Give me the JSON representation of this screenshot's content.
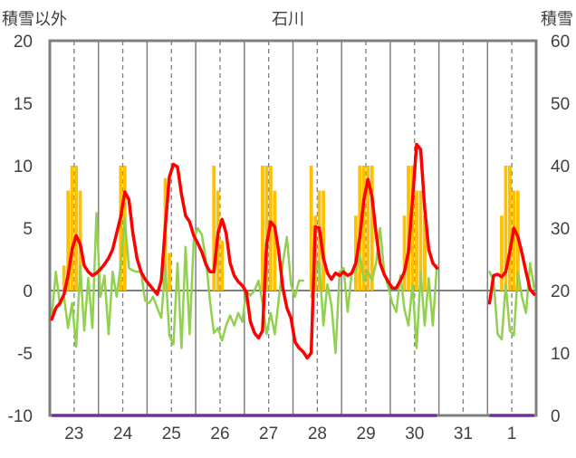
{
  "chart_data": {
    "type": "line",
    "title": "石川",
    "categories": [
      "23",
      "24",
      "25",
      "26",
      "27",
      "28",
      "29",
      "30",
      "31",
      "1"
    ],
    "y_left": {
      "label": "積雪以外",
      "range": [
        -10,
        20
      ],
      "ticks": [
        20,
        15,
        10,
        5,
        0,
        -5,
        -10
      ],
      "bar_series": [
        {
          "color": "#ffc000",
          "values": [
            [
              0,
              0,
              0,
              2,
              8,
              10,
              10,
              8,
              0,
              0,
              0,
              0
            ],
            [
              0,
              0,
              0,
              0,
              0,
              10,
              10,
              0,
              0,
              0,
              0,
              0
            ],
            [
              0,
              0,
              0,
              0,
              9,
              3,
              0,
              0,
              0,
              0,
              0,
              0
            ],
            [
              0,
              0,
              0,
              0,
              10,
              8,
              4,
              0,
              0,
              0,
              0,
              0
            ],
            [
              0,
              0,
              0,
              0,
              10,
              10,
              10,
              8,
              0,
              0,
              0,
              0
            ],
            [
              0,
              0,
              0,
              0,
              10,
              6,
              8,
              8,
              0,
              0,
              0,
              0
            ],
            [
              0,
              0,
              0,
              6,
              10,
              10,
              10,
              10,
              0,
              0,
              0,
              0
            ],
            [
              0,
              0,
              0,
              6,
              10,
              10,
              8,
              8,
              6,
              0,
              0,
              0
            ],
            null,
            [
              0,
              0,
              0,
              6,
              10,
              10,
              8,
              8,
              0,
              0,
              0,
              0
            ]
          ]
        }
      ],
      "line_series": [
        {
          "color": "#92d050",
          "values": [
            [
              -2.0,
              1.5,
              -1.2,
              -0.5,
              -3.0,
              -1.0,
              -4.5,
              2.0,
              -3.2,
              1.0,
              -3.0,
              6.2
            ],
            [
              -0.5,
              1.2,
              -3.5,
              1.5,
              -0.5,
              2.0,
              5.8,
              1.8,
              1.6,
              1.5,
              1.5,
              -0.8
            ],
            [
              -1.0,
              -0.5,
              -1.4,
              -2.2,
              2.0,
              -3.6,
              -4.3,
              2.2,
              -4.6,
              3.5,
              -3.5,
              4.0
            ],
            [
              5.0,
              4.5,
              2.5,
              -0.8,
              -3.4,
              -3.0,
              -4.0,
              -2.8,
              -2.0,
              -2.8,
              -1.8,
              -2.5
            ],
            [
              0.0,
              -0.4,
              0.0,
              0.8,
              -1.0,
              -3.5,
              -1.8,
              -3.5,
              -0.7,
              2.2,
              4.3,
              0.5
            ],
            [
              -0.5,
              0.8,
              0.8,
              null,
              -0.5,
              1.5,
              2.2,
              -2.8,
              0.5,
              -1.2,
              -5.0,
              1.5
            ],
            [
              1.8,
              -1.7,
              1.5,
              1.5,
              3.0,
              0.8,
              1.5,
              0.8,
              2.2,
              5.0,
              1.5,
              0.3
            ],
            [
              -1.0,
              -1.7,
              1.2,
              -1.5,
              -2.8,
              0.5,
              -4.6,
              1.5,
              -2.8,
              1.0,
              -2.8,
              2.0
            ],
            null,
            [
              1.5,
              0.8,
              -3.5,
              -3.9,
              0.5,
              -3.2,
              -3.6,
              1.5,
              -0.5,
              -1.8,
              2.2,
              0.2
            ]
          ]
        },
        {
          "color": "#ff0000",
          "values": [
            [
              -2.3,
              -1.4,
              -1.0,
              -0.3,
              1.2,
              3.3,
              4.4,
              3.7,
              2.0,
              1.5,
              1.2,
              1.4
            ],
            [
              1.7,
              2.1,
              2.6,
              3.3,
              4.6,
              5.9,
              7.9,
              7.3,
              4.6,
              2.6,
              1.5,
              0.9
            ],
            [
              0.5,
              0.1,
              -0.3,
              0.8,
              5.1,
              9.1,
              10.1,
              9.9,
              7.7,
              6.0,
              5.5,
              4.4
            ],
            [
              3.8,
              3.1,
              2.1,
              1.5,
              1.5,
              4.6,
              5.7,
              4.6,
              2.2,
              1.2,
              0.7,
              0.4
            ],
            [
              -0.1,
              -2.5,
              -3.4,
              -3.8,
              -3.2,
              3.7,
              5.5,
              5.1,
              3.1,
              0.2,
              -1.4,
              -2.2
            ],
            [
              -4.1,
              -4.6,
              -4.9,
              -5.4,
              -5.0,
              5.1,
              5.0,
              2.6,
              1.4,
              0.9,
              1.4,
              1.2
            ],
            [
              1.5,
              1.2,
              1.4,
              2.2,
              4.3,
              7.3,
              8.9,
              7.5,
              4.6,
              2.2,
              1.3,
              0.7
            ],
            [
              0.2,
              0.2,
              0.8,
              1.5,
              3.1,
              7.3,
              11.7,
              11.3,
              6.6,
              3.3,
              2.2,
              1.8
            ],
            null,
            [
              -1.0,
              1.2,
              1.3,
              1.1,
              1.5,
              3.1,
              5.0,
              4.3,
              3.0,
              1.5,
              0.1,
              -0.3
            ]
          ]
        }
      ]
    },
    "y_right": {
      "label": "積雪",
      "range": [
        0,
        60
      ],
      "ticks": [
        60,
        50,
        40,
        30,
        20,
        10,
        0
      ],
      "line_series": [
        {
          "color": "#7030a0",
          "values": [
            [
              0,
              0,
              0,
              0,
              0,
              0,
              0,
              0,
              0,
              0,
              0,
              0
            ],
            [
              0,
              0,
              0,
              0,
              0,
              0,
              0,
              0,
              0,
              0,
              0,
              0
            ],
            [
              0,
              0,
              0,
              0,
              0,
              0,
              0,
              0,
              0,
              0,
              0,
              0
            ],
            [
              0,
              0,
              0,
              0,
              0,
              0,
              0,
              0,
              0,
              0,
              0,
              0
            ],
            [
              0,
              0,
              0,
              0,
              0,
              0,
              0,
              0,
              0,
              0,
              0,
              0
            ],
            [
              0,
              0,
              0,
              0,
              0,
              0,
              0,
              0,
              0,
              0,
              0,
              0
            ],
            [
              0,
              0,
              0,
              0,
              0,
              0,
              0,
              0,
              0,
              0,
              0,
              0
            ],
            [
              0,
              0,
              0,
              0,
              0,
              0,
              0,
              0,
              0,
              0,
              0,
              0
            ],
            null,
            [
              0,
              0,
              0,
              0,
              0,
              0,
              0,
              0,
              0,
              0,
              0,
              0
            ]
          ]
        }
      ]
    },
    "grid": {
      "vertical": true,
      "horizontal_zero_line": true
    },
    "legend": false
  }
}
